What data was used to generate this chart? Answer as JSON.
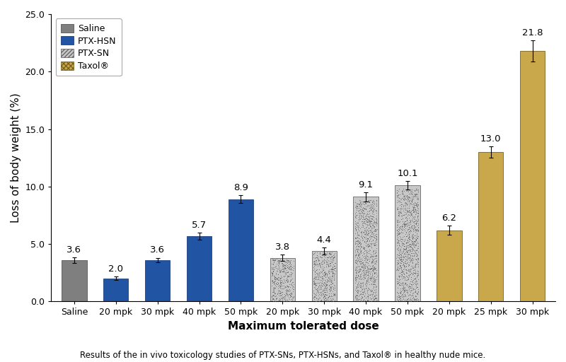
{
  "categories": [
    "Saline",
    "20 mpk",
    "30 mpk",
    "40 mpk",
    "50 mpk",
    "20 mpk",
    "30 mpk",
    "40 mpk",
    "50 mpk",
    "20 mpk",
    "25 mpk",
    "30 mpk"
  ],
  "values": [
    3.6,
    2.0,
    3.6,
    5.7,
    8.9,
    3.8,
    4.4,
    9.1,
    10.1,
    6.2,
    13.0,
    21.8
  ],
  "errors": [
    0.25,
    0.15,
    0.2,
    0.3,
    0.35,
    0.25,
    0.3,
    0.4,
    0.35,
    0.4,
    0.5,
    0.9
  ],
  "bar_types": [
    "saline",
    "hsn",
    "hsn",
    "hsn",
    "hsn",
    "sn",
    "sn",
    "sn",
    "sn",
    "taxol",
    "taxol",
    "taxol"
  ],
  "saline_color": "#7f7f7f",
  "hsn_color": "#2155a3",
  "sn_facecolor": "#c8c8c8",
  "sn_hatchcolor": "#888888",
  "taxol_facecolor": "#c8a84b",
  "taxol_hatchcolor": "#8b7030",
  "xlabel": "Maximum tolerated dose",
  "ylabel": "Loss of body weight (%)",
  "ylim": [
    0,
    25.0
  ],
  "yticks": [
    0.0,
    5.0,
    10.0,
    15.0,
    20.0,
    25.0
  ],
  "legend_labels": [
    "Saline",
    "PTX-HSN",
    "PTX-SN",
    "Taxol®"
  ],
  "legend_types": [
    "saline",
    "hsn",
    "sn",
    "taxol"
  ],
  "caption": "Results of the in vivo toxicology studies of PTX-SNs, PTX-HSNs, and Taxol® in healthy nude mice.",
  "label_fontsize": 9.5,
  "tick_fontsize": 9,
  "axis_label_fontsize": 11,
  "caption_fontsize": 8.5,
  "bar_width": 0.6
}
